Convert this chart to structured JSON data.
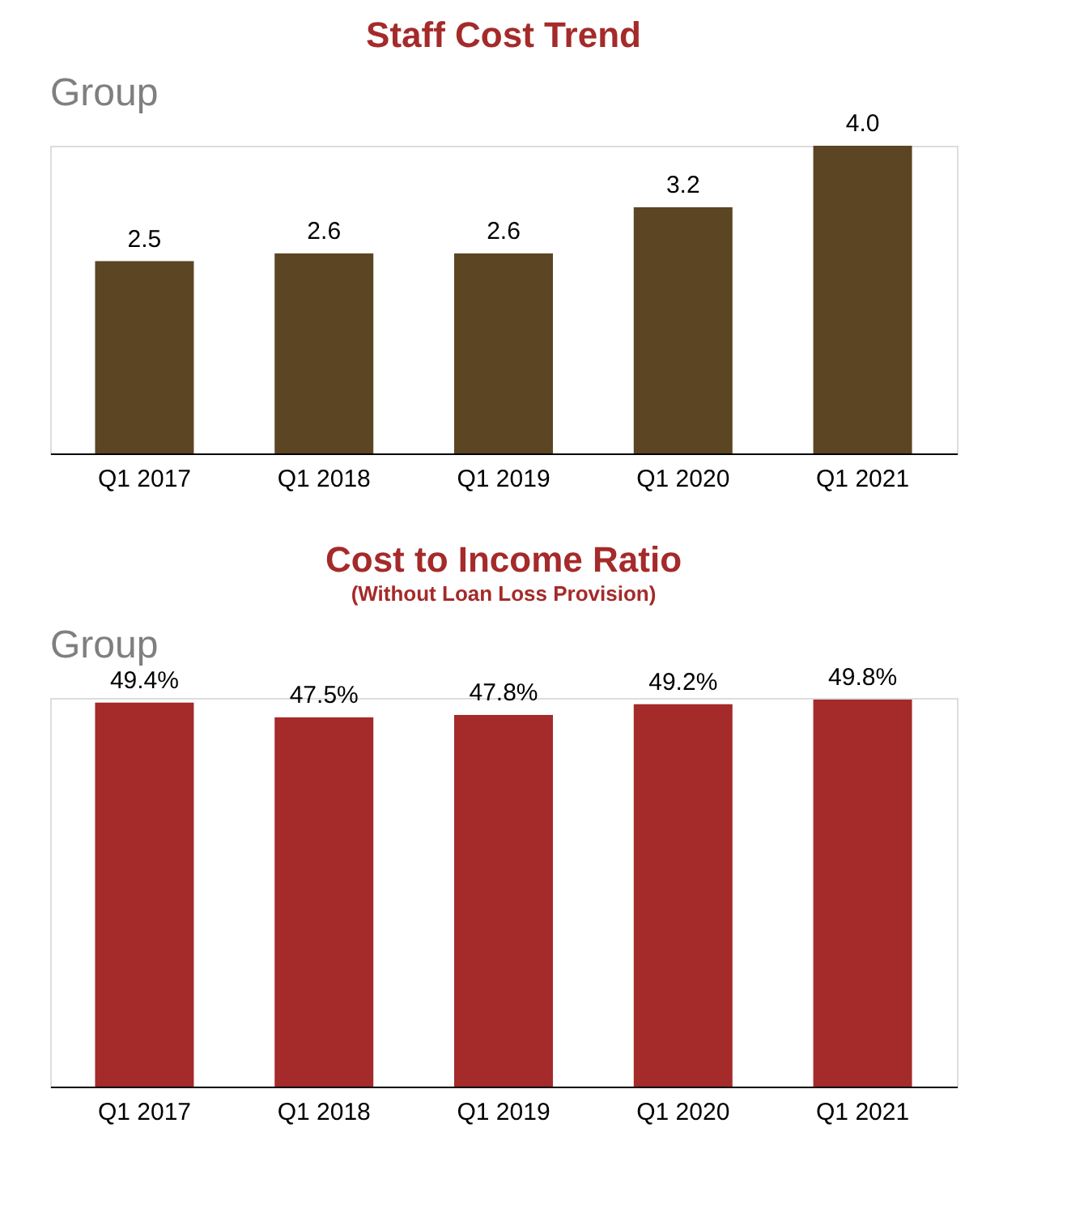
{
  "chart_data": [
    {
      "type": "bar",
      "title": "Staff Cost Trend",
      "annotations": [
        "Group"
      ],
      "categories": [
        "Q1 2017",
        "Q1 2018",
        "Q1 2019",
        "Q1 2020",
        "Q1 2021"
      ],
      "values": [
        2.5,
        2.6,
        2.6,
        3.2,
        4.0
      ],
      "value_labels": [
        "2.5",
        "2.6",
        "2.6",
        "3.2",
        "4.0"
      ],
      "color": "#5c4522",
      "grid": false
    },
    {
      "type": "bar",
      "title": "Cost to Income Ratio",
      "subtitle": "(Without Loan Loss Provision)",
      "annotations": [
        "Group"
      ],
      "categories": [
        "Q1 2017",
        "Q1 2018",
        "Q1 2019",
        "Q1 2020",
        "Q1 2021"
      ],
      "values": [
        49.4,
        47.5,
        47.8,
        49.2,
        49.8
      ],
      "value_labels": [
        "49.4%",
        "47.5%",
        "47.8%",
        "49.2%",
        "49.8%"
      ],
      "color": "#a52a2a",
      "grid": false
    }
  ]
}
